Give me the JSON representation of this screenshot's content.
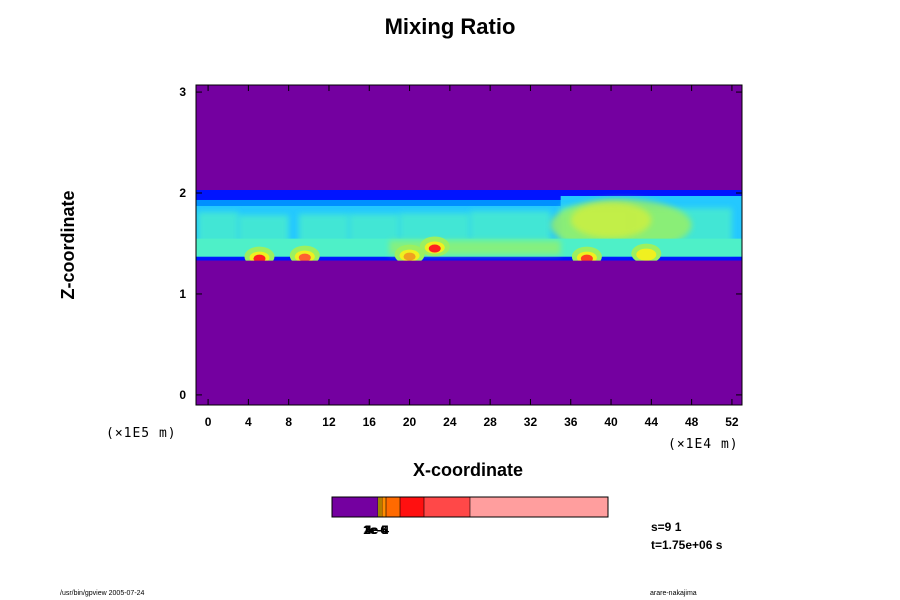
{
  "chart_data": {
    "type": "heatmap",
    "title": "Mixing Ratio",
    "xlabel": "X-coordinate",
    "ylabel": "Z-coordinate",
    "x_unit": "(×1E4 m)",
    "y_unit": "(×1E5 m)",
    "xlim": [
      -1.2,
      53
    ],
    "ylim": [
      -0.1,
      3.07
    ],
    "x_ticks": [
      "0",
      "4",
      "8",
      "12",
      "16",
      "20",
      "24",
      "28",
      "32",
      "36",
      "40",
      "44",
      "48",
      "52"
    ],
    "x_tick_values": [
      0,
      4,
      8,
      12,
      16,
      20,
      24,
      28,
      32,
      36,
      40,
      44,
      48,
      52
    ],
    "y_ticks": [
      "0",
      "1",
      "2",
      "3"
    ],
    "y_tick_values": [
      0,
      1,
      2,
      3
    ],
    "background_color": "#7400a0",
    "layer": {
      "z_bottom": 1.33,
      "z_top": 2.03,
      "colors": [
        "#0014ff",
        "#0090ff",
        "#24c8ff",
        "#4ef0c8",
        "#9cf060",
        "#f0f020",
        "#ff8000",
        "#ff1010",
        "#ff9090"
      ]
    },
    "hotspots": [
      {
        "x": 5.1,
        "z": 1.35,
        "level": "#ff2020"
      },
      {
        "x": 9.6,
        "z": 1.36,
        "level": "#ff6030"
      },
      {
        "x": 20.0,
        "z": 1.37,
        "level": "#f0a020"
      },
      {
        "x": 22.5,
        "z": 1.45,
        "level": "#ff2020"
      },
      {
        "x": 37.6,
        "z": 1.35,
        "level": "#ff4020"
      },
      {
        "x": 43.5,
        "z": 1.38,
        "level": "#f0f020"
      }
    ],
    "colorbar": {
      "segments": [
        {
          "color": "#7400a0",
          "width": 46
        },
        {
          "color": "#e0c000",
          "width": 2
        },
        {
          "color": "#ffb000",
          "width": 2
        },
        {
          "color": "#ff8c00",
          "width": 4
        },
        {
          "color": "#ff6a00",
          "width": 14
        },
        {
          "color": "#ff1010",
          "width": 24
        },
        {
          "color": "#ff4848",
          "width": 46
        },
        {
          "color": "#ff9e9e",
          "width": 138
        }
      ],
      "labels": [
        "1e-6",
        "2e-5",
        "3e-5",
        "4e-4"
      ]
    }
  },
  "info": {
    "step": "s=9 1",
    "time": "t=1.75e+06 s"
  },
  "footer": {
    "left": "/usr/bin/gpview 2005-07-24",
    "right": "arare-nakajima"
  }
}
